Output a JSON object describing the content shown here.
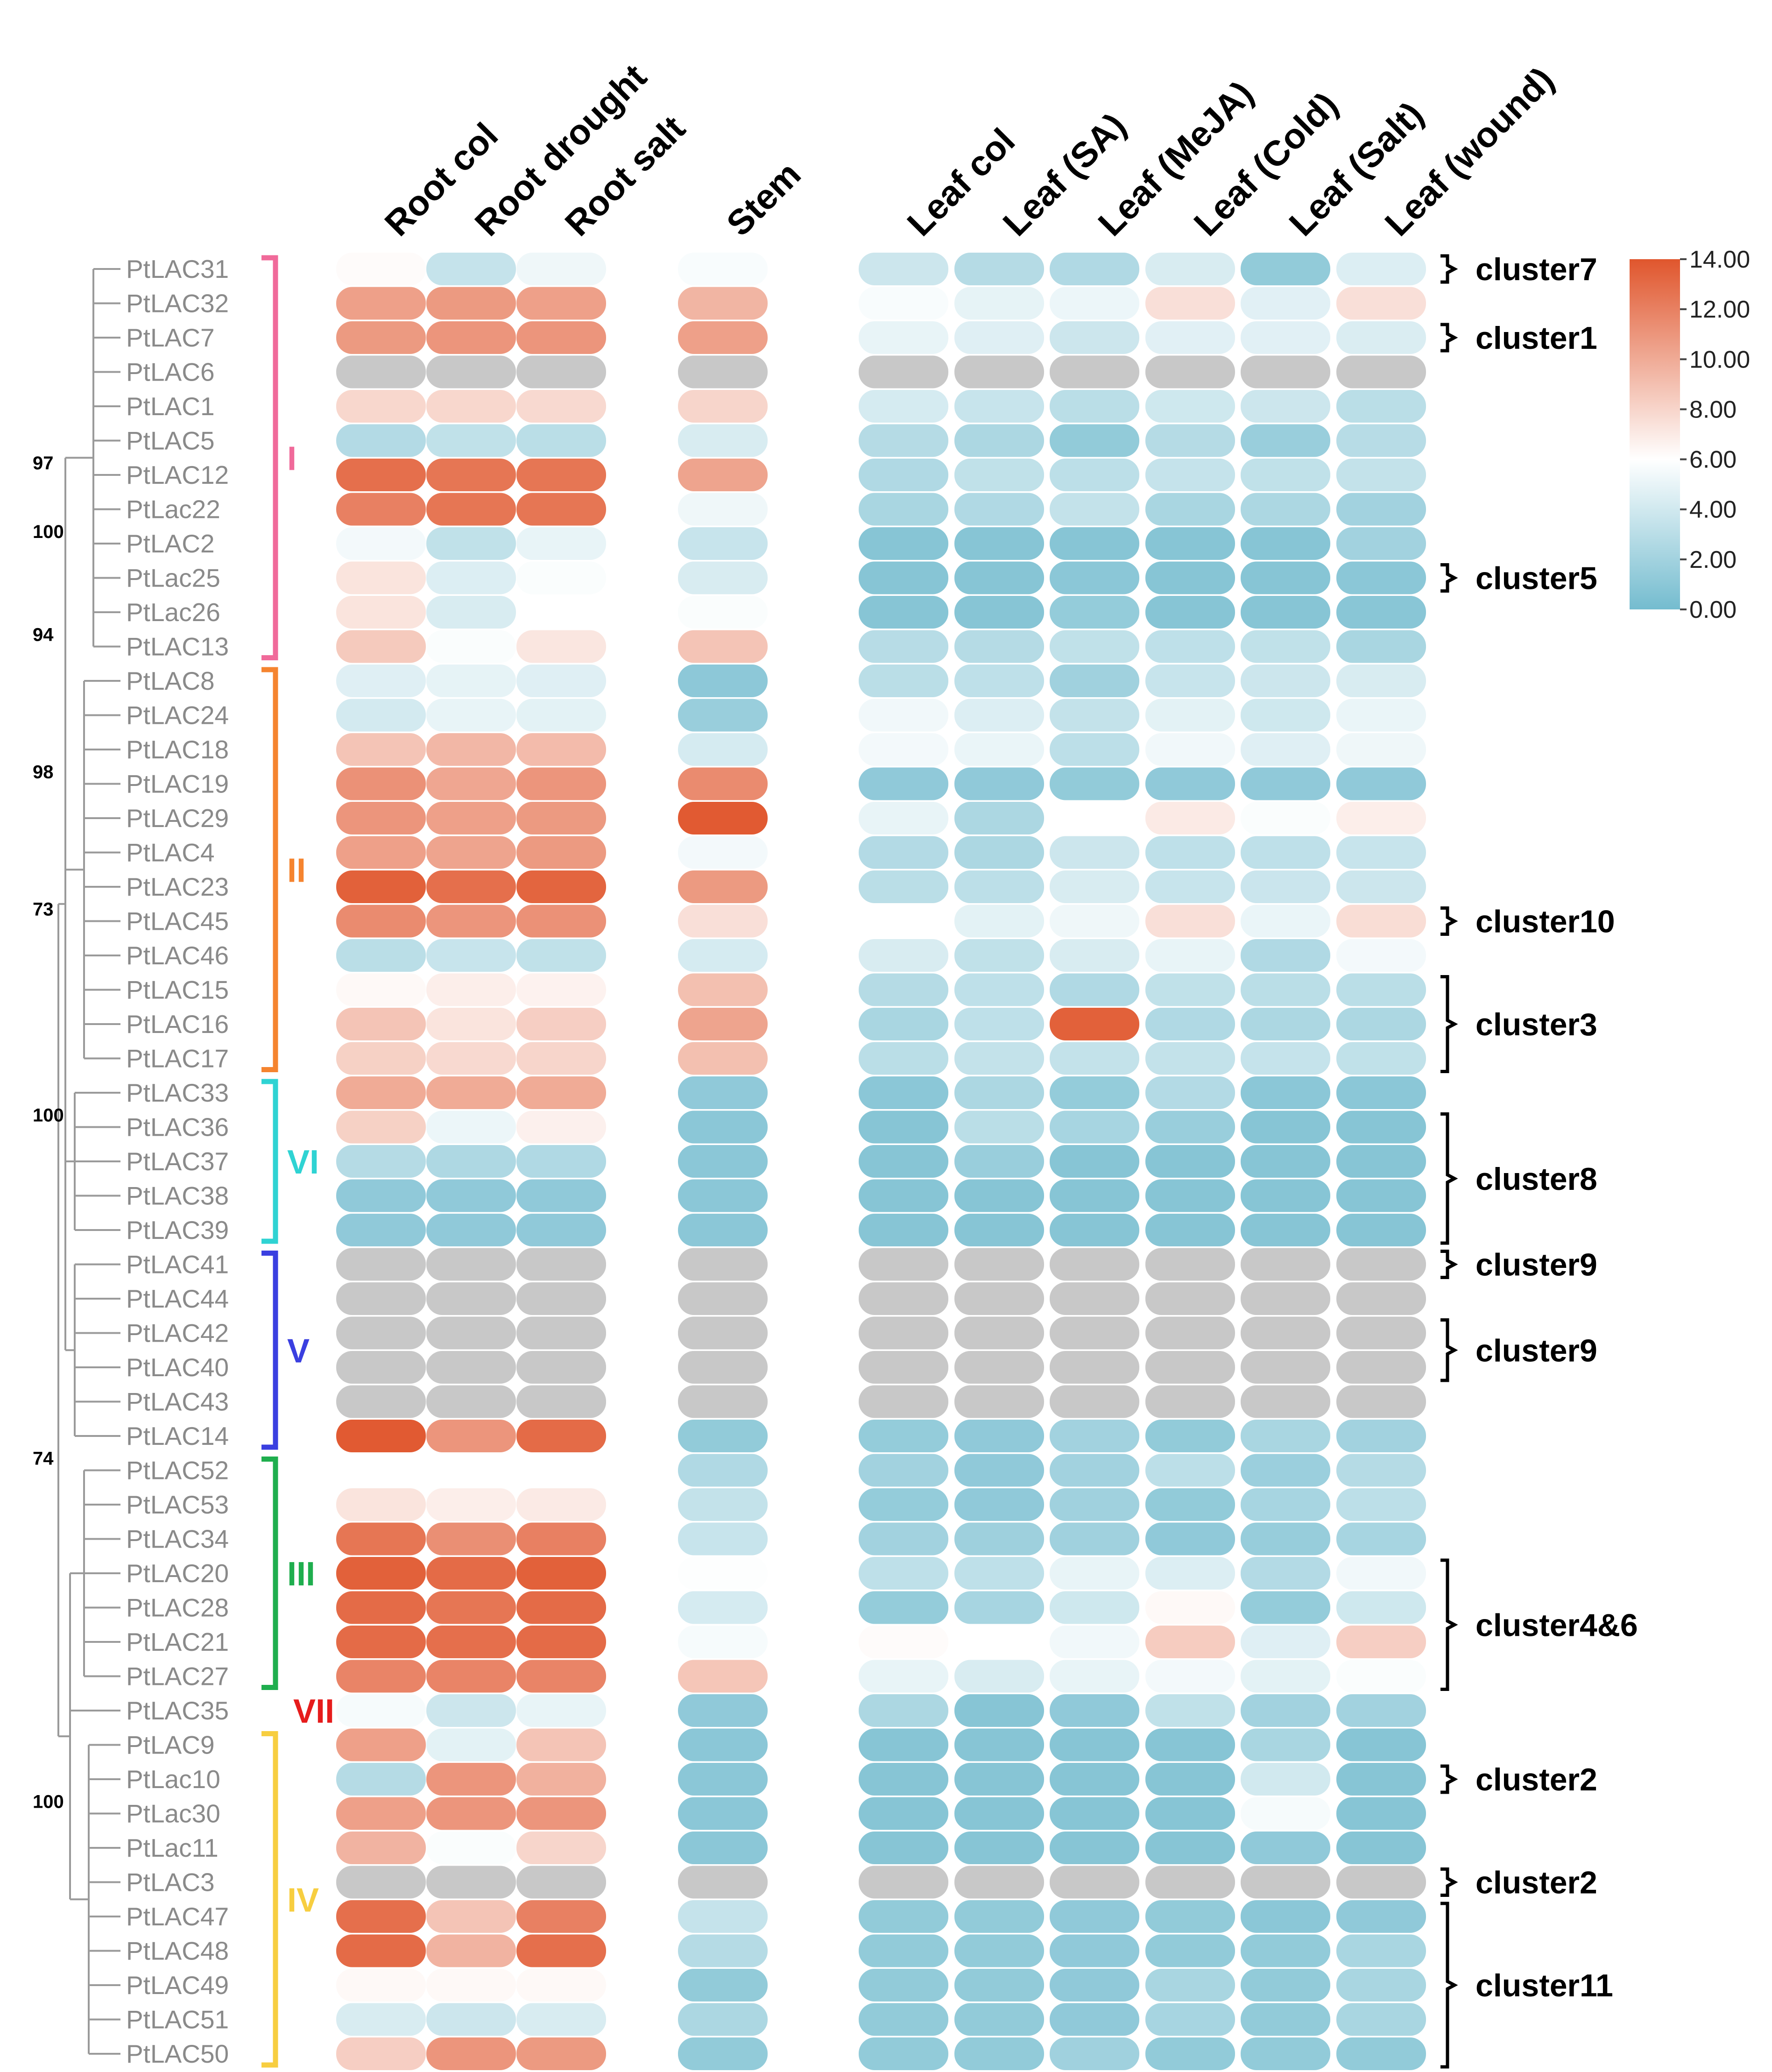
{
  "chart_data": {
    "type": "heatmap",
    "na_color": "#c8c8c8",
    "column_groups": [
      [
        "Root col",
        "Root drought",
        "Root salt"
      ],
      [
        "Stem"
      ],
      [
        "Leaf col",
        "Leaf (SA)",
        "Leaf (MeJA)",
        "Leaf (Cold)",
        "Leaf (Salt)",
        "Leaf (wound)"
      ]
    ],
    "columns": [
      "Root col",
      "Root drought",
      "Root salt",
      "Stem",
      "Leaf col",
      "Leaf (SA)",
      "Leaf (MeJA)",
      "Leaf (Cold)",
      "Leaf (Salt)",
      "Leaf (wound)"
    ],
    "rows": [
      "PtLAC31",
      "PtLAC32",
      "PtLAC7",
      "PtLAC6",
      "PtLAC1",
      "PtLAC5",
      "PtLAC12",
      "PtLac22",
      "PtLAC2",
      "PtLac25",
      "PtLac26",
      "PtLAC13",
      "PtLAC8",
      "PtLAC24",
      "PtLAC18",
      "PtLAC19",
      "PtLAC29",
      "PtLAC4",
      "PtLAC23",
      "PtLAC45",
      "PtLAC46",
      "PtLAC15",
      "PtLAC16",
      "PtLAC17",
      "PtLAC33",
      "PtLAC36",
      "PtLAC37",
      "PtLAC38",
      "PtLAC39",
      "PtLAC41",
      "PtLAC44",
      "PtLAC42",
      "PtLAC40",
      "PtLAC43",
      "PtLAC14",
      "PtLAC52",
      "PtLAC53",
      "PtLAC34",
      "PtLAC20",
      "PtLAC28",
      "PtLAC21",
      "PtLAC27",
      "PtLAC35",
      "PtLAC9",
      "PtLac10",
      "PtLac30",
      "PtLac11",
      "PtLAC3",
      "PtLAC47",
      "PtLAC48",
      "PtLAC49",
      "PtLAC51",
      "PtLAC50"
    ],
    "values": [
      [
        6.2,
        3.5,
        5.3,
        5.7,
        3.8,
        2.8,
        2.6,
        4.3,
        1.3,
        4.5
      ],
      [
        10.5,
        10.8,
        10.5,
        9.5,
        5.7,
        4.9,
        5.2,
        7.5,
        4.7,
        7.5
      ],
      [
        10.8,
        11.0,
        11.0,
        10.5,
        5.0,
        4.6,
        3.8,
        4.7,
        4.7,
        4.4
      ],
      [
        null,
        null,
        null,
        null,
        null,
        null,
        null,
        null,
        null,
        null
      ],
      [
        7.9,
        7.9,
        7.8,
        8.0,
        4.2,
        3.6,
        3.0,
        3.9,
        3.8,
        3.0
      ],
      [
        2.7,
        3.3,
        3.0,
        4.3,
        2.8,
        2.4,
        1.3,
        2.8,
        1.6,
        2.9
      ],
      [
        12.8,
        12.5,
        12.5,
        10.3,
        2.6,
        3.3,
        3.1,
        3.5,
        3.3,
        3.4
      ],
      [
        12.0,
        12.5,
        12.5,
        5.3,
        2.3,
        2.6,
        3.4,
        2.3,
        2.4,
        2.0
      ],
      [
        5.5,
        3.3,
        5.0,
        3.6,
        0.8,
        0.8,
        0.8,
        0.8,
        0.8,
        2.0
      ],
      [
        7.3,
        4.5,
        5.8,
        4.3,
        0.8,
        0.8,
        1.0,
        0.8,
        0.8,
        1.0
      ],
      [
        7.3,
        4.3,
        6.0,
        5.8,
        0.8,
        0.8,
        1.4,
        0.8,
        0.8,
        0.9
      ],
      [
        8.5,
        5.8,
        7.2,
        8.8,
        2.9,
        2.8,
        3.3,
        3.2,
        3.3,
        2.3
      ],
      [
        4.6,
        4.9,
        4.6,
        1.1,
        3.0,
        3.2,
        1.9,
        3.6,
        3.8,
        4.3
      ],
      [
        4.1,
        5.0,
        4.8,
        1.6,
        5.4,
        4.5,
        3.4,
        4.8,
        3.9,
        5.1
      ],
      [
        8.8,
        9.4,
        9.2,
        4.2,
        5.5,
        5.1,
        3.1,
        5.4,
        4.6,
        5.3
      ],
      [
        11.2,
        10.2,
        11.0,
        11.5,
        1.2,
        1.2,
        1.3,
        1.2,
        1.2,
        1.2
      ],
      [
        11.0,
        10.5,
        10.8,
        13.8,
        5.0,
        2.4,
        6.0,
        7.0,
        5.8,
        6.8
      ],
      [
        10.5,
        10.3,
        10.8,
        5.5,
        2.7,
        2.4,
        3.8,
        3.2,
        3.2,
        3.6
      ],
      [
        13.5,
        12.8,
        13.3,
        10.8,
        3.0,
        3.1,
        4.3,
        3.6,
        3.7,
        3.8
      ],
      [
        11.5,
        11.0,
        11.2,
        7.5,
        6.0,
        4.8,
        5.3,
        7.5,
        5.1,
        7.6
      ],
      [
        3.0,
        3.6,
        3.3,
        4.2,
        4.3,
        3.3,
        4.3,
        5.0,
        2.6,
        5.5
      ],
      [
        6.3,
        6.8,
        6.6,
        9.0,
        2.8,
        3.2,
        2.6,
        3.3,
        3.0,
        3.0
      ],
      [
        8.8,
        7.3,
        8.3,
        10.3,
        2.3,
        3.2,
        13.5,
        2.6,
        2.4,
        2.4
      ],
      [
        8.2,
        7.8,
        8.0,
        9.0,
        3.0,
        3.4,
        3.4,
        3.4,
        3.5,
        3.3
      ],
      [
        10.0,
        10.0,
        10.0,
        1.2,
        1.0,
        2.4,
        1.4,
        2.7,
        1.0,
        1.0
      ],
      [
        8.2,
        5.2,
        6.7,
        1.0,
        0.8,
        3.0,
        2.2,
        1.6,
        0.8,
        0.8
      ],
      [
        2.8,
        2.5,
        2.6,
        1.0,
        0.8,
        1.6,
        0.8,
        0.8,
        0.8,
        0.8
      ],
      [
        1.2,
        1.2,
        1.2,
        1.0,
        0.8,
        0.8,
        0.8,
        0.8,
        0.8,
        0.8
      ],
      [
        1.2,
        1.2,
        1.2,
        1.0,
        0.8,
        0.8,
        0.8,
        0.8,
        0.8,
        0.8
      ],
      [
        null,
        null,
        null,
        null,
        null,
        null,
        null,
        null,
        null,
        null
      ],
      [
        null,
        null,
        null,
        null,
        null,
        null,
        null,
        null,
        null,
        null
      ],
      [
        null,
        null,
        null,
        null,
        null,
        null,
        null,
        null,
        null,
        null
      ],
      [
        null,
        null,
        null,
        null,
        null,
        null,
        null,
        null,
        null,
        null
      ],
      [
        null,
        null,
        null,
        null,
        null,
        null,
        null,
        null,
        null,
        null
      ],
      [
        13.8,
        11.0,
        13.0,
        1.3,
        1.4,
        1.2,
        2.0,
        1.3,
        2.3,
        2.0
      ],
      [
        6.0,
        6.0,
        6.0,
        2.6,
        2.0,
        1.2,
        2.0,
        3.1,
        1.7,
        2.8
      ],
      [
        7.3,
        6.8,
        7.0,
        3.4,
        1.4,
        1.2,
        1.9,
        1.3,
        2.2,
        3.1
      ],
      [
        12.5,
        11.3,
        12.0,
        3.6,
        2.0,
        1.8,
        1.9,
        1.2,
        1.5,
        2.2
      ],
      [
        13.5,
        13.0,
        13.5,
        5.9,
        3.2,
        3.2,
        5.0,
        4.5,
        2.7,
        5.4
      ],
      [
        13.0,
        12.5,
        13.0,
        4.2,
        1.4,
        2.2,
        3.9,
        6.3,
        1.4,
        3.9
      ],
      [
        13.0,
        12.8,
        13.0,
        5.6,
        6.2,
        6.0,
        5.4,
        8.4,
        4.6,
        8.3
      ],
      [
        11.8,
        11.8,
        11.8,
        8.7,
        5.0,
        4.3,
        5.0,
        5.5,
        4.8,
        5.8
      ],
      [
        5.6,
        3.8,
        5.0,
        1.2,
        2.4,
        0.8,
        1.2,
        3.3,
        2.0,
        2.0
      ],
      [
        10.5,
        4.8,
        8.8,
        1.0,
        0.8,
        0.8,
        0.8,
        0.8,
        2.3,
        0.8
      ],
      [
        2.8,
        11.0,
        9.7,
        1.0,
        0.8,
        0.8,
        0.8,
        0.8,
        4.0,
        0.8
      ],
      [
        10.5,
        11.0,
        11.0,
        1.0,
        0.8,
        0.8,
        0.8,
        0.8,
        5.6,
        0.8
      ],
      [
        9.6,
        5.8,
        8.0,
        1.0,
        0.8,
        0.8,
        0.8,
        0.8,
        1.2,
        0.8
      ],
      [
        null,
        null,
        null,
        null,
        null,
        null,
        null,
        null,
        null,
        null
      ],
      [
        12.8,
        8.8,
        12.0,
        3.5,
        1.3,
        1.3,
        1.2,
        1.3,
        1.0,
        1.2
      ],
      [
        13.0,
        9.6,
        12.8,
        2.8,
        1.3,
        1.3,
        1.2,
        1.3,
        1.3,
        2.3
      ],
      [
        6.3,
        6.3,
        6.3,
        1.3,
        1.3,
        1.3,
        1.2,
        2.3,
        1.3,
        2.3
      ],
      [
        4.3,
        3.8,
        4.3,
        2.4,
        1.3,
        1.3,
        1.2,
        2.2,
        1.3,
        2.3
      ],
      [
        8.3,
        11.0,
        10.8,
        1.3,
        1.3,
        1.3,
        1.9,
        1.3,
        1.3,
        1.3
      ]
    ],
    "colorbar": {
      "ticks": [
        "14.00",
        "12.00",
        "10.00",
        "8.00",
        "6.00",
        "4.00",
        "2.00",
        "0.00"
      ],
      "range": [
        0,
        14
      ],
      "high_color": "#e0562d",
      "mid_color": "#ffffff",
      "low_color": "#74bccf"
    },
    "clades": [
      {
        "label": "I",
        "start": 0,
        "end": 11,
        "color": "#f06a9a"
      },
      {
        "label": "II",
        "start": 12,
        "end": 23,
        "color": "#f5842f"
      },
      {
        "label": "VI",
        "start": 24,
        "end": 28,
        "color": "#2fd3d3"
      },
      {
        "label": "V",
        "start": 29,
        "end": 34,
        "color": "#3a3fe0"
      },
      {
        "label": "III",
        "start": 35,
        "end": 41,
        "color": "#1fae4e"
      },
      {
        "label": "VII",
        "start": 42,
        "end": 42,
        "color": "#e61c1c"
      },
      {
        "label": "IV",
        "start": 43,
        "end": 52,
        "color": "#f7ce40"
      }
    ],
    "clusters": [
      {
        "label": "cluster7",
        "start": 0,
        "end": 0
      },
      {
        "label": "cluster1",
        "start": 2,
        "end": 2
      },
      {
        "label": "cluster5",
        "start": 9,
        "end": 9
      },
      {
        "label": "cluster10",
        "start": 19,
        "end": 19
      },
      {
        "label": "cluster3",
        "start": 21,
        "end": 23
      },
      {
        "label": "cluster8",
        "start": 25,
        "end": 28
      },
      {
        "label": "cluster9",
        "start": 29,
        "end": 29
      },
      {
        "label": "cluster9",
        "start": 31,
        "end": 32
      },
      {
        "label": "cluster4&6",
        "start": 38,
        "end": 41
      },
      {
        "label": "cluster2",
        "start": 44,
        "end": 44
      },
      {
        "label": "cluster2",
        "start": 47,
        "end": 47
      },
      {
        "label": "cluster11",
        "start": 48,
        "end": 52
      }
    ],
    "bootstrap": [
      {
        "label": "97",
        "row": 6
      },
      {
        "label": "100",
        "row": 8
      },
      {
        "label": "94",
        "row": 11
      },
      {
        "label": "98",
        "row": 15
      },
      {
        "label": "73",
        "row": 19
      },
      {
        "label": "100",
        "row": 25
      },
      {
        "label": "74",
        "row": 35
      },
      {
        "label": "100",
        "row": 45
      }
    ]
  }
}
